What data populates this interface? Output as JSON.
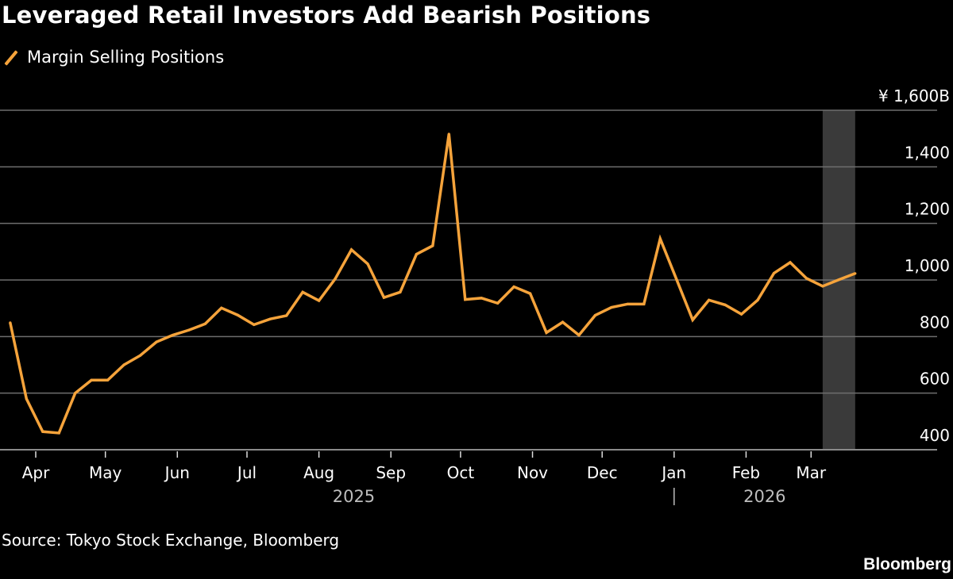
{
  "title": "Leveraged Retail Investors Add Bearish Positions",
  "source": "Source: Tokyo Stock Exchange, Bloomberg",
  "logo": "Bloomberg",
  "chart_data": {
    "type": "line",
    "title": "Leveraged Retail Investors Add Bearish Positions",
    "legend_position": "top-left",
    "grid": true,
    "y_axis_side": "right",
    "ylim": [
      400,
      1600
    ],
    "y_ticks": [
      400,
      600,
      800,
      1000,
      1200,
      1400,
      1600
    ],
    "y_tick_labels": [
      "400",
      "600",
      "800",
      "1,000",
      "1,200",
      "1,400",
      "¥ 1,600B"
    ],
    "x_ticks": [
      {
        "date": "2025-04-01",
        "label": "Apr"
      },
      {
        "date": "2025-05-01",
        "label": "May"
      },
      {
        "date": "2025-06-01",
        "label": "Jun"
      },
      {
        "date": "2025-07-01",
        "label": "Jul"
      },
      {
        "date": "2025-08-01",
        "label": "Aug"
      },
      {
        "date": "2025-09-01",
        "label": "Sep"
      },
      {
        "date": "2025-10-01",
        "label": "Oct"
      },
      {
        "date": "2025-11-01",
        "label": "Nov"
      },
      {
        "date": "2025-12-01",
        "label": "Dec"
      },
      {
        "date": "2026-01-01",
        "label": "Jan"
      },
      {
        "date": "2026-02-01",
        "label": "Feb"
      },
      {
        "date": "2026-03-01",
        "label": "Mar"
      }
    ],
    "year_labels": [
      {
        "label": "2025",
        "center_date": "2025-08-16"
      },
      {
        "label": "2026",
        "center_date": "2026-02-09"
      }
    ],
    "year_divider_date": "2026-01-01",
    "shaded_range": [
      "2026-03-06",
      "2026-03-20"
    ],
    "colors": {
      "series": "#f5a33b",
      "shade": "#3a3a3a",
      "grid": "#6e6e6e"
    },
    "series": [
      {
        "name": "Margin Selling Positions",
        "start_date": "2025-03-21",
        "interval": "weekly",
        "values": [
          849,
          580,
          464,
          459,
          600,
          646,
          646,
          700,
          733,
          781,
          805,
          823,
          845,
          901,
          876,
          842,
          862,
          874,
          957,
          927,
          1004,
          1107,
          1057,
          938,
          957,
          1091,
          1121,
          1516,
          931,
          936,
          918,
          976,
          952,
          814,
          851,
          805,
          875,
          903,
          915,
          915,
          1146,
          1003,
          859,
          929,
          912,
          879,
          929,
          1024,
          1062,
          1006,
          978,
          1001,
          1023
        ]
      }
    ]
  }
}
